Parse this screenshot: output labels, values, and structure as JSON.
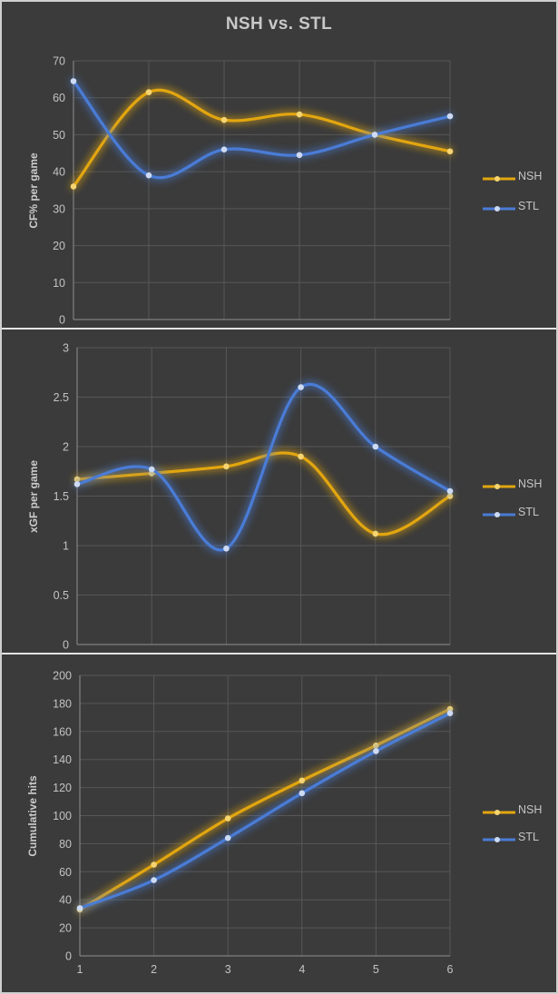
{
  "title": "NSH vs. STL",
  "colors": {
    "background": "#3B3B3B",
    "panel_border": "#E4E4E4",
    "gridline": "#575757",
    "axis_line": "#8F8F8F",
    "tick_text": "#C3C3C3",
    "title_text": "#C8C8C8",
    "axis_title_text": "#CCCCCC",
    "legend_text": "#C6C6C6",
    "nsh_accent": "#E2A60F",
    "stl_accent": "#4A7CD6"
  },
  "chart_data": [
    {
      "type": "line",
      "title": "NSH vs. STL",
      "ylabel": "CF% per game",
      "xlabel": "",
      "x": [
        1,
        2,
        3,
        4,
        5,
        6
      ],
      "ylim": [
        0,
        70
      ],
      "ystep": 10,
      "grid": true,
      "smooth": true,
      "legend_position": "right",
      "x_tick_labels_visible": false,
      "series": [
        {
          "name": "NSH",
          "color": "#E2A60F",
          "marker_color": "#F6D470",
          "values": [
            36,
            61.5,
            54,
            55.5,
            50,
            45.5
          ]
        },
        {
          "name": "STL",
          "color": "#4A7CD6",
          "marker_color": "#CDDAF3",
          "values": [
            64.5,
            39,
            46,
            44.5,
            50,
            55
          ]
        }
      ]
    },
    {
      "type": "line",
      "title": "",
      "ylabel": "xGF per game",
      "xlabel": "",
      "x": [
        1,
        2,
        3,
        4,
        5,
        6
      ],
      "ylim": [
        0,
        3
      ],
      "ystep": 0.5,
      "grid": true,
      "smooth": true,
      "legend_position": "right",
      "x_tick_labels_visible": false,
      "series": [
        {
          "name": "NSH",
          "color": "#E2A60F",
          "marker_color": "#F6D470",
          "values": [
            1.67,
            1.73,
            1.8,
            1.9,
            1.12,
            1.5
          ]
        },
        {
          "name": "STL",
          "color": "#4A7CD6",
          "marker_color": "#CDDAF3",
          "values": [
            1.62,
            1.77,
            0.97,
            2.6,
            2,
            1.55
          ]
        }
      ]
    },
    {
      "type": "line",
      "title": "",
      "ylabel": "Cumulative hits",
      "xlabel": "",
      "x": [
        1,
        2,
        3,
        4,
        5,
        6
      ],
      "ylim": [
        0,
        200
      ],
      "ystep": 20,
      "grid": true,
      "smooth": true,
      "legend_position": "right",
      "x_tick_labels_visible": true,
      "series": [
        {
          "name": "NSH",
          "color": "#E2A60F",
          "marker_color": "#F6D470",
          "values": [
            33,
            65,
            98,
            125,
            150,
            176
          ]
        },
        {
          "name": "STL",
          "color": "#4A7CD6",
          "marker_color": "#CDDAF3",
          "values": [
            34,
            54,
            84,
            116,
            146,
            173
          ]
        }
      ]
    }
  ]
}
